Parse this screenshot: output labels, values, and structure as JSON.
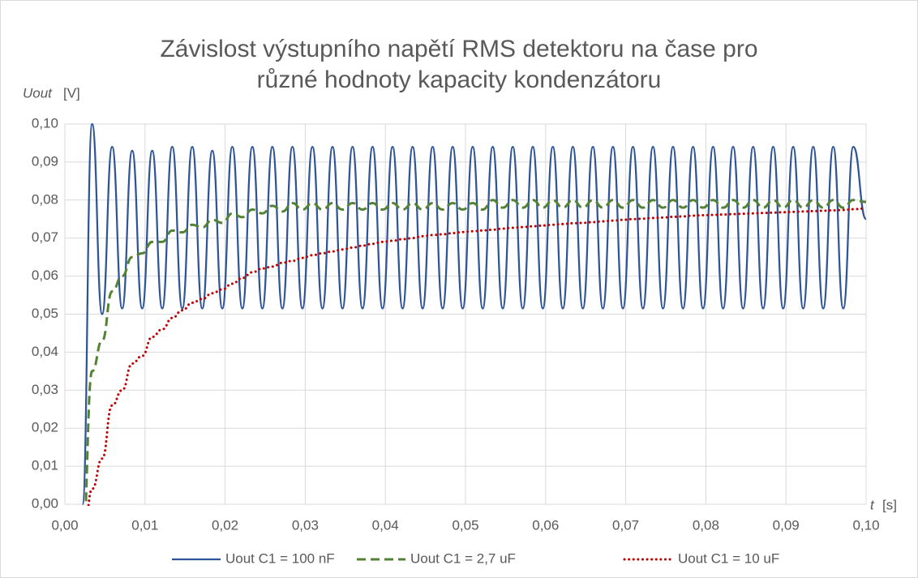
{
  "chart_data": {
    "type": "line",
    "title": [
      "Závislost výstupního napětí RMS detektoru na čase pro",
      "různé hodnoty kapacity kondenzátoru"
    ],
    "ylabel_var": "Uout",
    "ylabel_unit": "[V]",
    "xlabel_var": "t",
    "xlabel_unit": "[s]",
    "xlim": [
      0,
      0.1
    ],
    "ylim": [
      0,
      0.1
    ],
    "grid": true,
    "legend": "bottom",
    "xticks": [
      {
        "value": 0,
        "label": "0,00"
      },
      {
        "value": 0.01,
        "label": "0,01"
      },
      {
        "value": 0.02,
        "label": "0,02"
      },
      {
        "value": 0.03,
        "label": "0,03"
      },
      {
        "value": 0.04,
        "label": "0,04"
      },
      {
        "value": 0.05,
        "label": "0,05"
      },
      {
        "value": 0.06,
        "label": "0,06"
      },
      {
        "value": 0.07,
        "label": "0,07"
      },
      {
        "value": 0.08,
        "label": "0,08"
      },
      {
        "value": 0.09,
        "label": "0,09"
      },
      {
        "value": 0.1,
        "label": "0,10"
      }
    ],
    "yticks": [
      {
        "value": 0,
        "label": "0,00"
      },
      {
        "value": 0.01,
        "label": "0,01"
      },
      {
        "value": 0.02,
        "label": "0,02"
      },
      {
        "value": 0.03,
        "label": "0,03"
      },
      {
        "value": 0.04,
        "label": "0,04"
      },
      {
        "value": 0.05,
        "label": "0,05"
      },
      {
        "value": 0.06,
        "label": "0,06"
      },
      {
        "value": 0.07,
        "label": "0,07"
      },
      {
        "value": 0.08,
        "label": "0,08"
      },
      {
        "value": 0.09,
        "label": "0,09"
      },
      {
        "value": 0.1,
        "label": "0,10"
      }
    ],
    "x": [
      0.0022,
      0.0034,
      0.00465,
      0.0059,
      0.00715,
      0.0084,
      0.00965,
      0.0109,
      0.01215,
      0.0134,
      0.01465,
      0.0159,
      0.01715,
      0.0184,
      0.01965,
      0.0209,
      0.02215,
      0.0234,
      0.02465,
      0.0259,
      0.02715,
      0.0284,
      0.02965,
      0.0309,
      0.03215,
      0.0334,
      0.03465,
      0.0359,
      0.03715,
      0.0384,
      0.03965,
      0.0409,
      0.04215,
      0.0434,
      0.04465,
      0.0459,
      0.04715,
      0.0484,
      0.04965,
      0.0509,
      0.05215,
      0.0534,
      0.05465,
      0.0559,
      0.05715,
      0.0584,
      0.05965,
      0.0609,
      0.06215,
      0.0634,
      0.06465,
      0.0659,
      0.06715,
      0.0684,
      0.06965,
      0.0709,
      0.07215,
      0.0734,
      0.07465,
      0.0759,
      0.07715,
      0.0784,
      0.07965,
      0.0809,
      0.08215,
      0.0834,
      0.08465,
      0.0859,
      0.08715,
      0.0884,
      0.08965,
      0.0909,
      0.09215,
      0.0934,
      0.09465,
      0.0959,
      0.09715,
      0.0984,
      0.1
    ],
    "series": [
      {
        "name": "Uout C1 = 100 nF",
        "color": "#2f5597",
        "style": "solid",
        "values": [
          0,
          0.1,
          0.05,
          0.094,
          0.0515,
          0.093,
          0.0515,
          0.093,
          0.0515,
          0.094,
          0.0515,
          0.094,
          0.0515,
          0.093,
          0.0515,
          0.094,
          0.0515,
          0.094,
          0.0515,
          0.094,
          0.0515,
          0.094,
          0.0515,
          0.094,
          0.0515,
          0.094,
          0.0515,
          0.094,
          0.0515,
          0.094,
          0.0515,
          0.094,
          0.0515,
          0.094,
          0.0515,
          0.094,
          0.0515,
          0.094,
          0.0515,
          0.094,
          0.0515,
          0.094,
          0.0515,
          0.094,
          0.0515,
          0.094,
          0.0515,
          0.094,
          0.0515,
          0.094,
          0.0515,
          0.094,
          0.0515,
          0.094,
          0.0515,
          0.094,
          0.0515,
          0.094,
          0.0515,
          0.094,
          0.0515,
          0.094,
          0.0515,
          0.094,
          0.0515,
          0.094,
          0.0515,
          0.094,
          0.0515,
          0.094,
          0.0515,
          0.094,
          0.0515,
          0.094,
          0.0515,
          0.094,
          0.0515,
          0.094,
          0.075
        ]
      },
      {
        "name": "Uout C1 = 2,7 uF",
        "color": "#548235",
        "style": "dashed",
        "values": [
          -0.01,
          0.035,
          0.043,
          0.056,
          0.06,
          0.065,
          0.066,
          0.069,
          0.069,
          0.072,
          0.0715,
          0.0735,
          0.0728,
          0.0748,
          0.074,
          0.0765,
          0.0755,
          0.0775,
          0.0765,
          0.0785,
          0.077,
          0.0792,
          0.0775,
          0.0792,
          0.0775,
          0.0792,
          0.0775,
          0.0792,
          0.0775,
          0.0792,
          0.0775,
          0.0792,
          0.0775,
          0.0792,
          0.0775,
          0.0792,
          0.0775,
          0.0792,
          0.0775,
          0.0792,
          0.0775,
          0.08,
          0.078,
          0.08,
          0.078,
          0.08,
          0.078,
          0.08,
          0.078,
          0.08,
          0.078,
          0.08,
          0.078,
          0.08,
          0.078,
          0.08,
          0.078,
          0.08,
          0.078,
          0.08,
          0.078,
          0.08,
          0.078,
          0.08,
          0.078,
          0.08,
          0.078,
          0.08,
          0.078,
          0.08,
          0.078,
          0.08,
          0.078,
          0.08,
          0.078,
          0.08,
          0.078,
          0.08,
          0.0795
        ]
      },
      {
        "name": "Uout C1 = 10 uF",
        "color": "#c00000",
        "style": "dotted",
        "values": [
          -0.012,
          0.004,
          0.012,
          0.026,
          0.03,
          0.037,
          0.039,
          0.044,
          0.046,
          0.049,
          0.051,
          0.053,
          0.054,
          0.0555,
          0.0565,
          0.058,
          0.0595,
          0.061,
          0.062,
          0.0625,
          0.0635,
          0.064,
          0.0648,
          0.0655,
          0.066,
          0.0665,
          0.067,
          0.0675,
          0.068,
          0.0685,
          0.069,
          0.0693,
          0.0697,
          0.07,
          0.0705,
          0.0708,
          0.071,
          0.0713,
          0.0716,
          0.0718,
          0.072,
          0.0722,
          0.0725,
          0.0727,
          0.0729,
          0.0731,
          0.0733,
          0.0735,
          0.0737,
          0.0739,
          0.074,
          0.0742,
          0.0744,
          0.0746,
          0.0748,
          0.075,
          0.0751,
          0.0753,
          0.0754,
          0.0756,
          0.0757,
          0.0759,
          0.076,
          0.0761,
          0.0762,
          0.0763,
          0.0764,
          0.0765,
          0.0766,
          0.0767,
          0.0768,
          0.0769,
          0.077,
          0.0771,
          0.0772,
          0.0773,
          0.0774,
          0.0776,
          0.0778
        ]
      }
    ]
  }
}
